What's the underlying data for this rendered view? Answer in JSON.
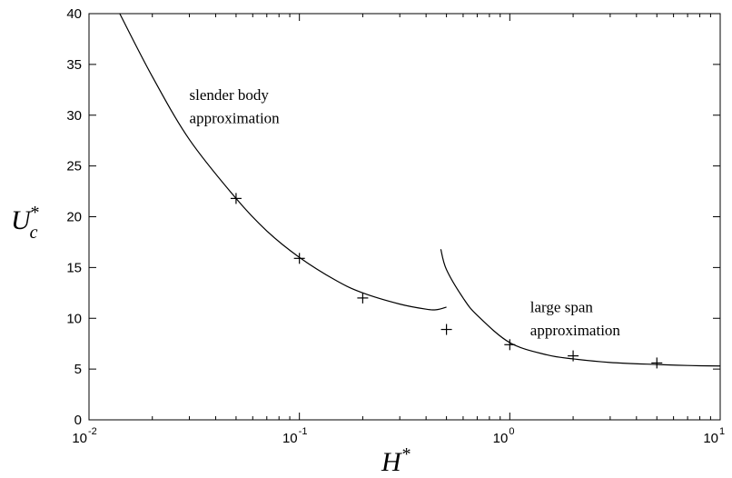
{
  "chart_data": {
    "type": "line",
    "title": "",
    "xlabel": "H",
    "xlabel_sup": "*",
    "ylabel": "U",
    "ylabel_sub": "c",
    "ylabel_sup": "*",
    "xscale": "log",
    "xlim": [
      0.01,
      10
    ],
    "ylim": [
      0,
      40
    ],
    "grid": false,
    "x_ticks": [
      {
        "base": "10",
        "exp": "-2",
        "value": 0.01
      },
      {
        "base": "10",
        "exp": "-1",
        "value": 0.1
      },
      {
        "base": "10",
        "exp": "0",
        "value": 1
      },
      {
        "base": "10",
        "exp": "1",
        "value": 10
      }
    ],
    "y_ticks": [
      "0",
      "5",
      "10",
      "15",
      "20",
      "25",
      "30",
      "35",
      "40"
    ],
    "series": [
      {
        "type": "line",
        "x": [
          0.014,
          0.02,
          0.03,
          0.05,
          0.07,
          0.1,
          0.15,
          0.2,
          0.3,
          0.4,
          0.45,
          0.5
        ],
        "y": [
          40.0,
          33.8,
          27.6,
          21.8,
          18.6,
          16.0,
          13.7,
          12.5,
          11.4,
          10.9,
          10.85,
          11.1
        ]
      },
      {
        "type": "line",
        "x": [
          0.47,
          0.5,
          0.6,
          0.7,
          1.0,
          1.5,
          2.0,
          3.0,
          5.0,
          7.0,
          10.0
        ],
        "y": [
          16.8,
          14.8,
          12.0,
          10.3,
          7.6,
          6.4,
          6.0,
          5.65,
          5.45,
          5.35,
          5.3
        ]
      },
      {
        "type": "scatter",
        "marker": "plus",
        "x": [
          0.05,
          0.1,
          0.2,
          0.5,
          1.0,
          2.0,
          5.0
        ],
        "y": [
          21.8,
          15.9,
          12.0,
          8.9,
          7.4,
          6.3,
          5.6
        ]
      }
    ],
    "annotations": [
      {
        "text": "slender body",
        "x": 0.03,
        "y": 31.5
      },
      {
        "text": "approximation",
        "x": 0.03,
        "y": 29.2
      },
      {
        "text": "large span",
        "x": 1.25,
        "y": 10.6
      },
      {
        "text": "approximation",
        "x": 1.25,
        "y": 8.3
      }
    ]
  }
}
